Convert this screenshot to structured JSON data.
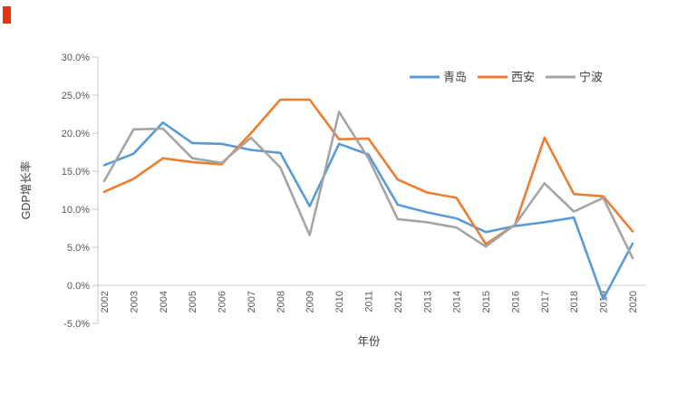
{
  "page": {
    "background": "#ffffff"
  },
  "decorations": {
    "corner_marker_color": "#e53212"
  },
  "chart_data": {
    "type": "line",
    "title": "",
    "xlabel": "年份",
    "ylabel": "GDP增长率",
    "x": [
      "2002",
      "2003",
      "2004",
      "2005",
      "2006",
      "2007",
      "2008",
      "2009",
      "2010",
      "2011",
      "2012",
      "2013",
      "2014",
      "2015",
      "2016",
      "2017",
      "2018",
      "2019",
      "2020"
    ],
    "series": [
      {
        "name": "青岛",
        "slug": "qingdao",
        "color": "#5B9BD5",
        "values": [
          15.8,
          17.3,
          21.4,
          18.7,
          18.6,
          17.8,
          17.4,
          10.4,
          18.6,
          17.2,
          10.6,
          9.6,
          8.8,
          7.0,
          7.8,
          8.3,
          8.9,
          -1.8,
          5.5
        ]
      },
      {
        "name": "西安",
        "slug": "xian",
        "color": "#ED7D31",
        "values": [
          12.3,
          14.0,
          16.7,
          16.2,
          15.9,
          20.0,
          24.4,
          24.4,
          19.2,
          19.3,
          13.9,
          12.2,
          11.5,
          5.4,
          8.0,
          19.4,
          12.0,
          11.7,
          7.1
        ]
      },
      {
        "name": "宁波",
        "slug": "ningbo",
        "color": "#A5A5A5",
        "values": [
          13.7,
          20.5,
          20.6,
          16.7,
          16.1,
          19.4,
          15.5,
          6.6,
          22.8,
          16.7,
          8.7,
          8.3,
          7.6,
          5.1,
          8.0,
          13.4,
          9.7,
          11.5,
          3.6
        ]
      }
    ],
    "ylim": [
      -5,
      30
    ],
    "yticks": [
      {
        "value": 30,
        "label": "30.0%"
      },
      {
        "value": 25,
        "label": "25.0%"
      },
      {
        "value": 20,
        "label": "20.0%"
      },
      {
        "value": 15,
        "label": "15.0%"
      },
      {
        "value": 10,
        "label": "10.0%"
      },
      {
        "value": 5,
        "label": "5.0%"
      },
      {
        "value": 0,
        "label": "0.0%"
      },
      {
        "value": -5,
        "label": "-5.0%"
      }
    ],
    "grid": false,
    "legend_position": "top-right-inside",
    "axis_color": "#C9C9C9",
    "text_color": "#595959"
  }
}
